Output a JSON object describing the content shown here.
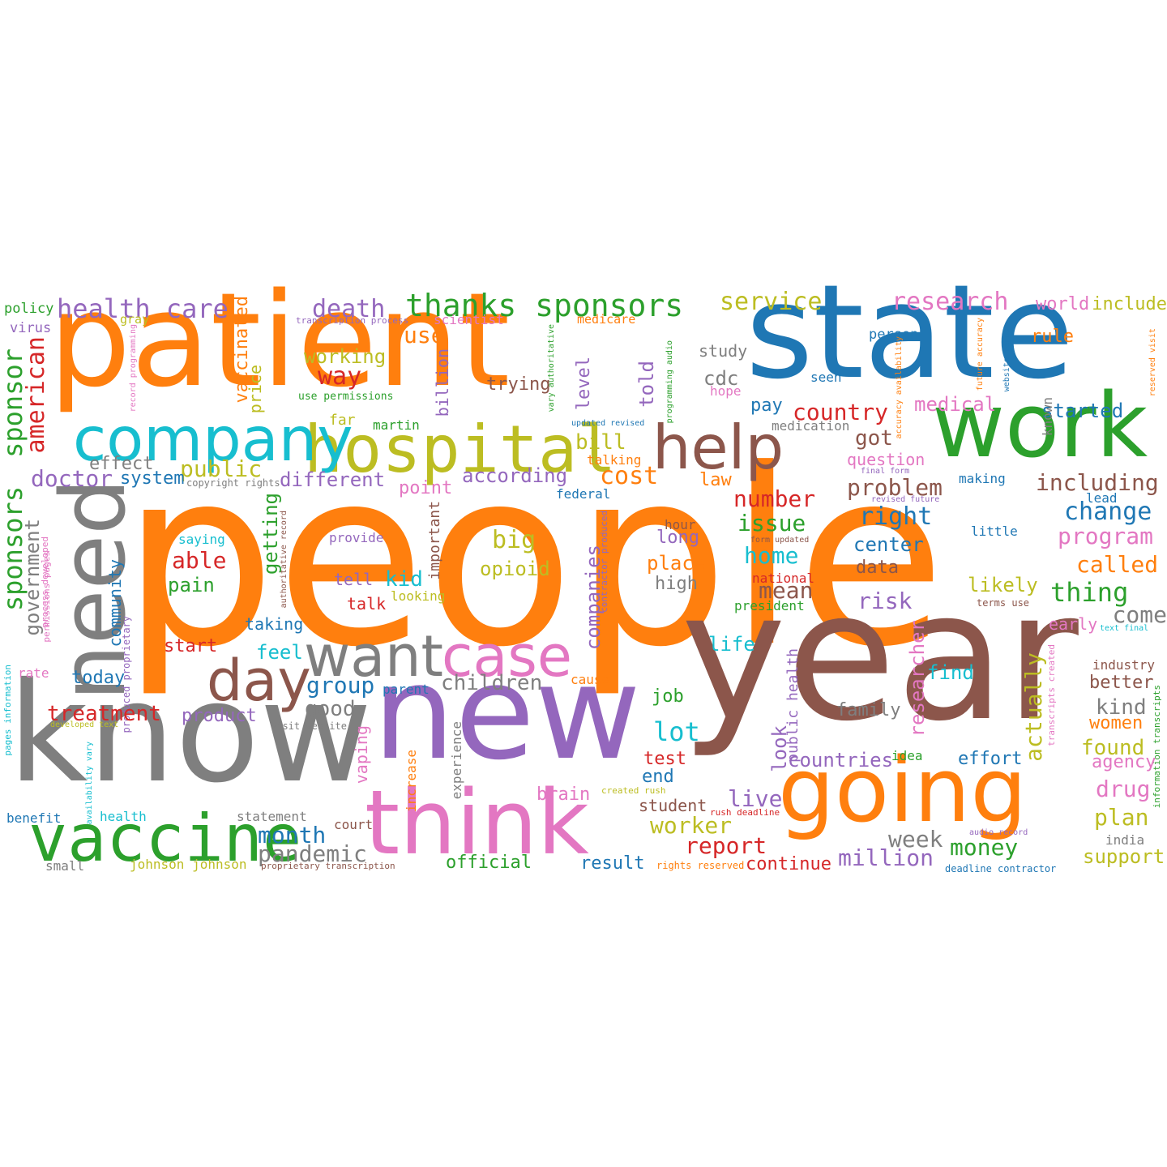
{
  "colors": {
    "orange": "#ff7f0e",
    "blue": "#1f77b4",
    "green": "#2ca02c",
    "red": "#d62728",
    "purple": "#9467bd",
    "brown": "#8c564b",
    "pink": "#e377c2",
    "gray": "#7f7f7f",
    "olive": "#bcbd22",
    "cyan": "#17becf"
  },
  "words": [
    {
      "text": "people",
      "size": 300,
      "color": "orange"
    },
    {
      "text": "patient",
      "size": 160,
      "color": "orange"
    },
    {
      "text": "state",
      "size": 160,
      "color": "blue"
    },
    {
      "text": "year",
      "size": 220,
      "color": "brown"
    },
    {
      "text": "know",
      "size": 170,
      "color": "gray"
    },
    {
      "text": "new",
      "size": 160,
      "color": "purple"
    },
    {
      "text": "work",
      "size": 110,
      "color": "green"
    },
    {
      "text": "going",
      "size": 110,
      "color": "orange"
    },
    {
      "text": "think",
      "size": 110,
      "color": "pink"
    },
    {
      "text": "need",
      "size": 110,
      "color": "gray"
    },
    {
      "text": "vaccine",
      "size": 80,
      "color": "green"
    },
    {
      "text": "hospital",
      "size": 80,
      "color": "olive"
    },
    {
      "text": "company",
      "size": 75,
      "color": "cyan"
    },
    {
      "text": "help",
      "size": 75,
      "color": "brown"
    },
    {
      "text": "want",
      "size": 70,
      "color": "gray"
    },
    {
      "text": "case",
      "size": 70,
      "color": "pink"
    },
    {
      "text": "day",
      "size": 70,
      "color": "brown"
    },
    {
      "text": "thanks sponsors",
      "size": 38,
      "color": "green"
    },
    {
      "text": "health care",
      "size": 32,
      "color": "purple"
    },
    {
      "text": "death",
      "size": 30,
      "color": "purple"
    },
    {
      "text": "service",
      "size": 30,
      "color": "olive"
    },
    {
      "text": "research",
      "size": 30,
      "color": "pink"
    },
    {
      "text": "world",
      "size": 22,
      "color": "pink"
    },
    {
      "text": "include",
      "size": 22,
      "color": "olive"
    },
    {
      "text": "policy",
      "size": 17,
      "color": "green"
    },
    {
      "text": "virus",
      "size": 17,
      "color": "purple"
    },
    {
      "text": "gray",
      "size": 15,
      "color": "olive"
    },
    {
      "text": "transcription process",
      "size": 11,
      "color": "purple"
    },
    {
      "text": "scientist",
      "size": 16,
      "color": "pink"
    },
    {
      "text": "medicare",
      "size": 15,
      "color": "orange"
    },
    {
      "text": "person",
      "size": 17,
      "color": "blue"
    },
    {
      "text": "rule",
      "size": 22,
      "color": "orange"
    },
    {
      "text": "sponsor",
      "size": 32,
      "color": "green"
    },
    {
      "text": "american",
      "size": 30,
      "color": "red"
    },
    {
      "text": "vaccinated",
      "size": 22,
      "color": "orange"
    },
    {
      "text": "price",
      "size": 20,
      "color": "olive"
    },
    {
      "text": "working",
      "size": 24,
      "color": "olive"
    },
    {
      "text": "use",
      "size": 28,
      "color": "orange"
    },
    {
      "text": "study",
      "size": 20,
      "color": "gray"
    },
    {
      "text": "seen",
      "size": 16,
      "color": "blue"
    },
    {
      "text": "cdc",
      "size": 24,
      "color": "gray"
    },
    {
      "text": "hope",
      "size": 16,
      "color": "pink"
    },
    {
      "text": "way",
      "size": 30,
      "color": "red"
    },
    {
      "text": "trying",
      "size": 22,
      "color": "brown"
    },
    {
      "text": "use permissions",
      "size": 13,
      "color": "green"
    },
    {
      "text": "billion",
      "size": 20,
      "color": "purple"
    },
    {
      "text": "level",
      "size": 22,
      "color": "purple"
    },
    {
      "text": "told",
      "size": 24,
      "color": "purple"
    },
    {
      "text": "pay",
      "size": 22,
      "color": "blue"
    },
    {
      "text": "country",
      "size": 28,
      "color": "red"
    },
    {
      "text": "medical",
      "size": 24,
      "color": "pink"
    },
    {
      "text": "started",
      "size": 24,
      "color": "blue"
    },
    {
      "text": "known",
      "size": 16,
      "color": "gray"
    },
    {
      "text": "far",
      "size": 18,
      "color": "olive"
    },
    {
      "text": "martin",
      "size": 16,
      "color": "green"
    },
    {
      "text": "updated revised",
      "size": 10,
      "color": "blue"
    },
    {
      "text": "medication",
      "size": 16,
      "color": "gray"
    },
    {
      "text": "effect",
      "size": 22,
      "color": "gray"
    },
    {
      "text": "public",
      "size": 28,
      "color": "olive"
    },
    {
      "text": "bill",
      "size": 26,
      "color": "olive"
    },
    {
      "text": "talking",
      "size": 16,
      "color": "orange"
    },
    {
      "text": "got",
      "size": 26,
      "color": "brown"
    },
    {
      "text": "question",
      "size": 20,
      "color": "pink"
    },
    {
      "text": "final form",
      "size": 10,
      "color": "purple"
    },
    {
      "text": "doctor",
      "size": 28,
      "color": "purple"
    },
    {
      "text": "system",
      "size": 22,
      "color": "blue"
    },
    {
      "text": "copyright rights",
      "size": 12,
      "color": "gray"
    },
    {
      "text": "different",
      "size": 24,
      "color": "purple"
    },
    {
      "text": "according",
      "size": 24,
      "color": "purple"
    },
    {
      "text": "cost",
      "size": 30,
      "color": "orange"
    },
    {
      "text": "law",
      "size": 22,
      "color": "orange"
    },
    {
      "text": "problem",
      "size": 28,
      "color": "brown"
    },
    {
      "text": "making",
      "size": 16,
      "color": "blue"
    },
    {
      "text": "including",
      "size": 28,
      "color": "brown"
    },
    {
      "text": "point",
      "size": 22,
      "color": "pink"
    },
    {
      "text": "federal",
      "size": 16,
      "color": "blue"
    },
    {
      "text": "number",
      "size": 28,
      "color": "red"
    },
    {
      "text": "right",
      "size": 30,
      "color": "blue"
    },
    {
      "text": "revised future",
      "size": 10,
      "color": "purple"
    },
    {
      "text": "lead",
      "size": 16,
      "color": "blue"
    },
    {
      "text": "change",
      "size": 30,
      "color": "blue"
    },
    {
      "text": "sponsors",
      "size": 32,
      "color": "green"
    },
    {
      "text": "government",
      "size": 24,
      "color": "gray"
    },
    {
      "text": "saying",
      "size": 16,
      "color": "cyan"
    },
    {
      "text": "provide",
      "size": 16,
      "color": "purple"
    },
    {
      "text": "big",
      "size": 30,
      "color": "olive"
    },
    {
      "text": "issue",
      "size": 28,
      "color": "green"
    },
    {
      "text": "hour",
      "size": 16,
      "color": "brown"
    },
    {
      "text": "long",
      "size": 22,
      "color": "purple"
    },
    {
      "text": "form updated",
      "size": 10,
      "color": "brown"
    },
    {
      "text": "center",
      "size": 24,
      "color": "blue"
    },
    {
      "text": "little",
      "size": 16,
      "color": "blue"
    },
    {
      "text": "program",
      "size": 28,
      "color": "pink"
    },
    {
      "text": "able",
      "size": 28,
      "color": "red"
    },
    {
      "text": "getting",
      "size": 24,
      "color": "green"
    },
    {
      "text": "important",
      "size": 18,
      "color": "brown"
    },
    {
      "text": "opioid",
      "size": 24,
      "color": "olive"
    },
    {
      "text": "companies",
      "size": 24,
      "color": "purple"
    },
    {
      "text": "home",
      "size": 28,
      "color": "cyan"
    },
    {
      "text": "place",
      "size": 24,
      "color": "orange"
    },
    {
      "text": "data",
      "size": 22,
      "color": "brown"
    },
    {
      "text": "called",
      "size": 28,
      "color": "orange"
    },
    {
      "text": "community",
      "size": 20,
      "color": "blue"
    },
    {
      "text": "produced proprietary",
      "size": 12,
      "color": "purple"
    },
    {
      "text": "pain",
      "size": 24,
      "color": "green"
    },
    {
      "text": "tell",
      "size": 20,
      "color": "purple"
    },
    {
      "text": "kid",
      "size": 26,
      "color": "cyan"
    },
    {
      "text": "looking",
      "size": 16,
      "color": "olive"
    },
    {
      "text": "contractor produced",
      "size": 11,
      "color": "purple"
    },
    {
      "text": "high",
      "size": 22,
      "color": "gray"
    },
    {
      "text": "national",
      "size": 16,
      "color": "red"
    },
    {
      "text": "mean",
      "size": 28,
      "color": "brown"
    },
    {
      "text": "likely",
      "size": 24,
      "color": "olive"
    },
    {
      "text": "thing",
      "size": 32,
      "color": "green"
    },
    {
      "text": "terms use",
      "size": 12,
      "color": "brown"
    },
    {
      "text": "process developed",
      "size": 11,
      "color": "pink"
    },
    {
      "text": "permissions pages",
      "size": 11,
      "color": "pink"
    },
    {
      "text": "authoritative record",
      "size": 10,
      "color": "brown"
    },
    {
      "text": "talk",
      "size": 20,
      "color": "red"
    },
    {
      "text": "president",
      "size": 16,
      "color": "green"
    },
    {
      "text": "risk",
      "size": 28,
      "color": "purple"
    },
    {
      "text": "come",
      "size": 28,
      "color": "gray"
    },
    {
      "text": "early",
      "size": 20,
      "color": "pink"
    },
    {
      "text": "text final",
      "size": 10,
      "color": "cyan"
    },
    {
      "text": "taking",
      "size": 20,
      "color": "blue"
    },
    {
      "text": "start",
      "size": 22,
      "color": "red"
    },
    {
      "text": "feel",
      "size": 24,
      "color": "cyan"
    },
    {
      "text": "rate",
      "size": 16,
      "color": "pink"
    },
    {
      "text": "today",
      "size": 22,
      "color": "blue"
    },
    {
      "text": "life",
      "size": 24,
      "color": "cyan"
    },
    {
      "text": "researcher",
      "size": 24,
      "color": "pink"
    },
    {
      "text": "find",
      "size": 24,
      "color": "cyan"
    },
    {
      "text": "industry",
      "size": 16,
      "color": "brown"
    },
    {
      "text": "better",
      "size": 22,
      "color": "brown"
    },
    {
      "text": "group",
      "size": 28,
      "color": "blue"
    },
    {
      "text": "children",
      "size": 26,
      "color": "gray"
    },
    {
      "text": "parent",
      "size": 16,
      "color": "blue"
    },
    {
      "text": "cause",
      "size": 16,
      "color": "orange"
    },
    {
      "text": "public health",
      "size": 18,
      "color": "purple"
    },
    {
      "text": "transcripts created",
      "size": 11,
      "color": "pink"
    },
    {
      "text": "pages information",
      "size": 11,
      "color": "cyan"
    },
    {
      "text": "information transcripts",
      "size": 11,
      "color": "green"
    },
    {
      "text": "treatment",
      "size": 26,
      "color": "red"
    },
    {
      "text": "product",
      "size": 22,
      "color": "purple"
    },
    {
      "text": "good",
      "size": 26,
      "color": "gray"
    },
    {
      "text": "job",
      "size": 22,
      "color": "green"
    },
    {
      "text": "family",
      "size": 22,
      "color": "gray"
    },
    {
      "text": "kind",
      "size": 26,
      "color": "gray"
    },
    {
      "text": "women",
      "size": 22,
      "color": "orange"
    },
    {
      "text": "developed text",
      "size": 10,
      "color": "olive"
    },
    {
      "text": "visit website",
      "size": 12,
      "color": "gray"
    },
    {
      "text": "lot",
      "size": 32,
      "color": "cyan"
    },
    {
      "text": "look",
      "size": 24,
      "color": "purple"
    },
    {
      "text": "actually",
      "size": 28,
      "color": "olive"
    },
    {
      "text": "found",
      "size": 26,
      "color": "olive"
    },
    {
      "text": "availability vary",
      "size": 10,
      "color": "cyan"
    },
    {
      "text": "vaping",
      "size": 20,
      "color": "pink"
    },
    {
      "text": "experience",
      "size": 16,
      "color": "gray"
    },
    {
      "text": "increase",
      "size": 16,
      "color": "orange"
    },
    {
      "text": "test",
      "size": 22,
      "color": "red"
    },
    {
      "text": "end",
      "size": 22,
      "color": "blue"
    },
    {
      "text": "countries",
      "size": 24,
      "color": "purple"
    },
    {
      "text": "idea",
      "size": 16,
      "color": "green"
    },
    {
      "text": "effort",
      "size": 22,
      "color": "blue"
    },
    {
      "text": "agency",
      "size": 22,
      "color": "pink"
    },
    {
      "text": "brain",
      "size": 22,
      "color": "pink"
    },
    {
      "text": "created rush",
      "size": 11,
      "color": "olive"
    },
    {
      "text": "live",
      "size": 28,
      "color": "purple"
    },
    {
      "text": "drug",
      "size": 28,
      "color": "pink"
    },
    {
      "text": "benefit",
      "size": 16,
      "color": "blue"
    },
    {
      "text": "health",
      "size": 16,
      "color": "cyan"
    },
    {
      "text": "statement",
      "size": 16,
      "color": "gray"
    },
    {
      "text": "student",
      "size": 20,
      "color": "brown"
    },
    {
      "text": "rush deadline",
      "size": 11,
      "color": "red"
    },
    {
      "text": "worker",
      "size": 28,
      "color": "olive"
    },
    {
      "text": "plan",
      "size": 28,
      "color": "olive"
    },
    {
      "text": "month",
      "size": 28,
      "color": "blue"
    },
    {
      "text": "court",
      "size": 16,
      "color": "brown"
    },
    {
      "text": "report",
      "size": 28,
      "color": "red"
    },
    {
      "text": "week",
      "size": 28,
      "color": "gray"
    },
    {
      "text": "money",
      "size": 28,
      "color": "green"
    },
    {
      "text": "audio record",
      "size": 10,
      "color": "purple"
    },
    {
      "text": "india",
      "size": 16,
      "color": "gray"
    },
    {
      "text": "pandemic",
      "size": 28,
      "color": "gray"
    },
    {
      "text": "million",
      "size": 28,
      "color": "purple"
    },
    {
      "text": "support",
      "size": 24,
      "color": "olive"
    },
    {
      "text": "small",
      "size": 16,
      "color": "gray"
    },
    {
      "text": "johnson johnson",
      "size": 16,
      "color": "olive"
    },
    {
      "text": "proprietary transcription",
      "size": 11,
      "color": "brown"
    },
    {
      "text": "official",
      "size": 22,
      "color": "green"
    },
    {
      "text": "result",
      "size": 22,
      "color": "blue"
    },
    {
      "text": "rights reserved",
      "size": 12,
      "color": "orange"
    },
    {
      "text": "continue",
      "size": 22,
      "color": "red"
    },
    {
      "text": "deadline contractor",
      "size": 12,
      "color": "blue"
    },
    {
      "text": "record programming",
      "size": 10,
      "color": "pink"
    },
    {
      "text": "vary authoritative",
      "size": 10,
      "color": "green"
    },
    {
      "text": "programming audio",
      "size": 10,
      "color": "green"
    },
    {
      "text": "accuracy availability",
      "size": 10,
      "color": "orange"
    },
    {
      "text": "future accuracy",
      "size": 10,
      "color": "orange"
    },
    {
      "text": "website terms",
      "size": 10,
      "color": "blue"
    },
    {
      "text": "reserved visit",
      "size": 10,
      "color": "orange"
    }
  ]
}
